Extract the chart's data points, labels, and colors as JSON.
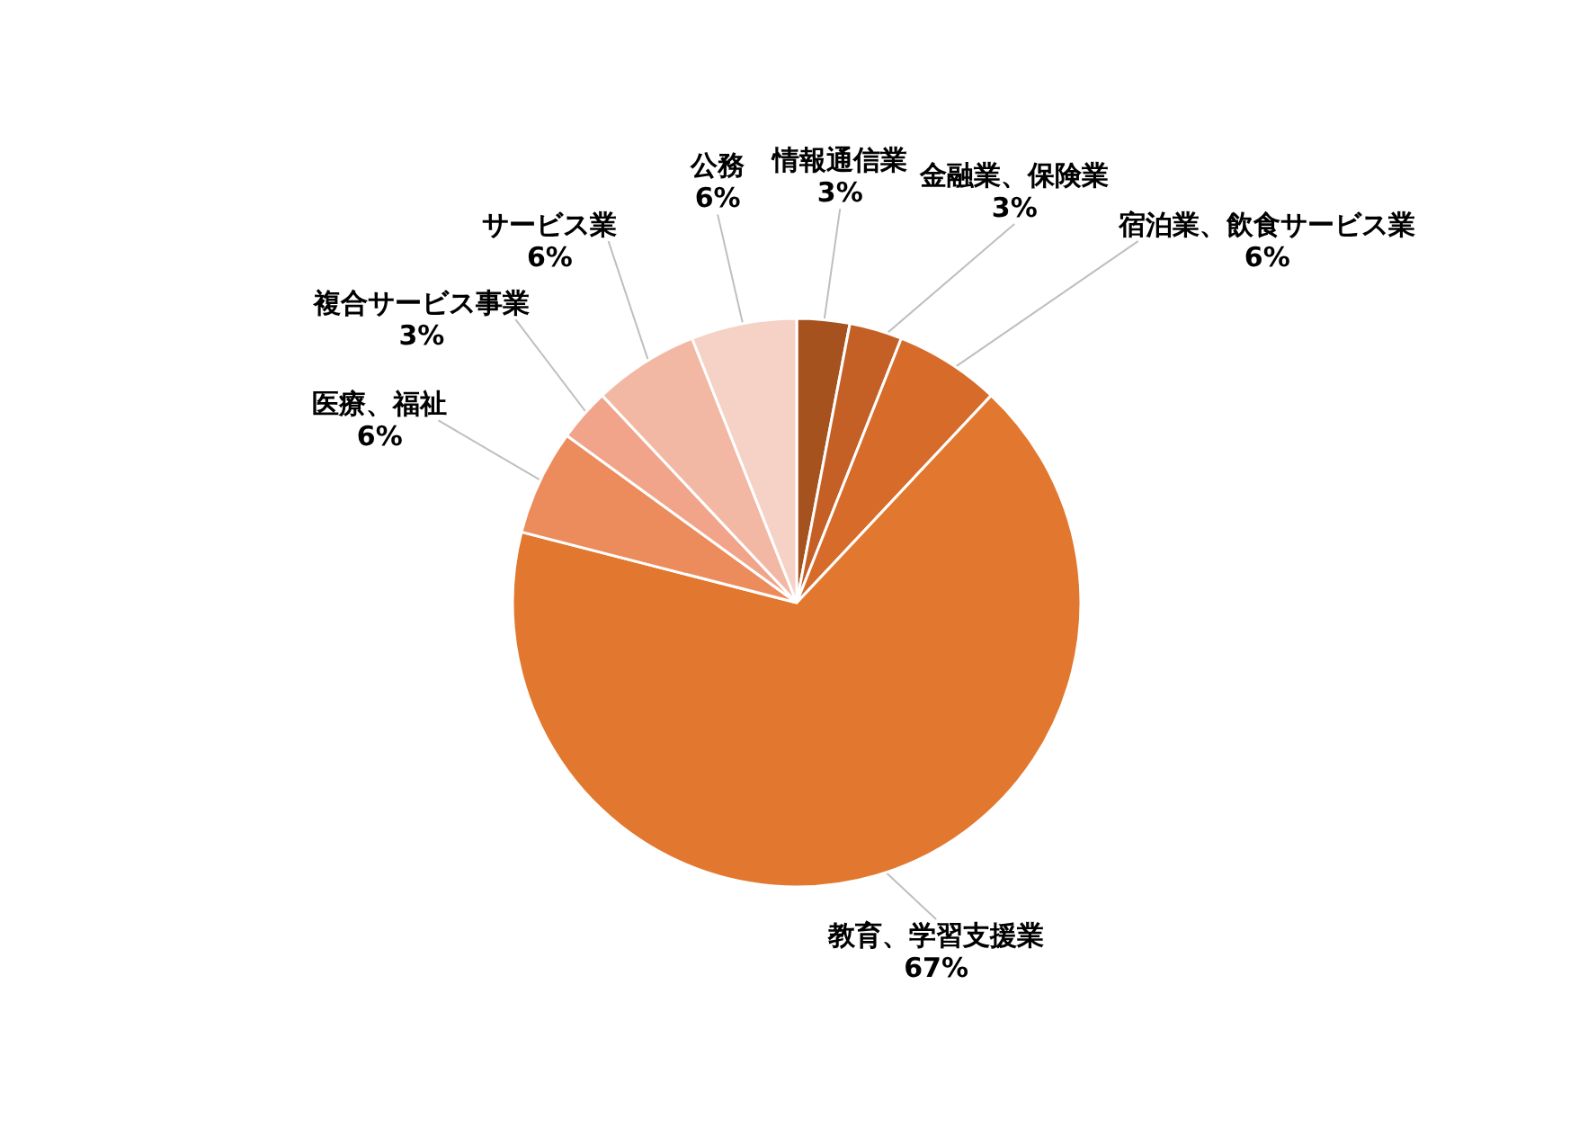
{
  "chart_data": {
    "type": "pie",
    "categories": [
      "情報通信業",
      "金融業、保険業",
      "宿泊業、飲食サービス業",
      "教育、学習支援業",
      "医療、福祉",
      "複合サービス事業",
      "サービス業",
      "公務"
    ],
    "values": [
      3,
      3,
      6,
      67,
      6,
      3,
      6,
      6
    ],
    "value_labels": [
      "3%",
      "3%",
      "6%",
      "67%",
      "6%",
      "3%",
      "6%",
      "6%"
    ],
    "colors": [
      "#a5521f",
      "#c45f26",
      "#d66b2a",
      "#e2782f",
      "#ec8c5c",
      "#f1a48a",
      "#f3b8a3",
      "#f6d1c5"
    ]
  }
}
